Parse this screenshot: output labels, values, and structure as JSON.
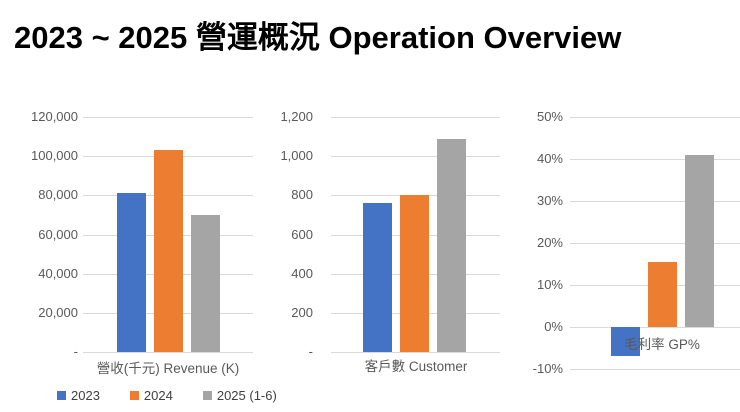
{
  "title": "2023 ~ 2025 營運概況 Operation Overview",
  "colors": {
    "series": [
      "#4472C4",
      "#ED7D31",
      "#A5A5A5"
    ],
    "grid": "#D9D9D9",
    "axis_text": "#595959",
    "legend_text": "#404040",
    "title_text": "#000000",
    "background": "#FFFFFF"
  },
  "legend": {
    "items": [
      {
        "label": "2023",
        "color": "#4472C4"
      },
      {
        "label": "2024",
        "color": "#ED7D31"
      },
      {
        "label": "2025 (1-6)",
        "color": "#A5A5A5"
      }
    ]
  },
  "chart_data": [
    {
      "type": "bar",
      "key": "revenue",
      "title": "營收(千元) Revenue (K)",
      "xlabel": "營收(千元) Revenue (K)",
      "categories": [
        "2023",
        "2024",
        "2025 (1-6)"
      ],
      "values": [
        81000,
        103000,
        70000
      ],
      "ylim": [
        0,
        120000
      ],
      "ytick_step": 20000,
      "ytick_labels": [
        "-",
        "20,000",
        "40,000",
        "60,000",
        "80,000",
        "100,000",
        "120,000"
      ],
      "grid": true,
      "xlabel_position": "below",
      "legend_position": "shared-bottom-left"
    },
    {
      "type": "bar",
      "key": "customer",
      "title": "客戶數 Customer",
      "xlabel": "客戶數 Customer",
      "categories": [
        "2023",
        "2024",
        "2025 (1-6)"
      ],
      "values": [
        760,
        800,
        1090
      ],
      "ylim": [
        0,
        1200
      ],
      "ytick_step": 200,
      "ytick_labels": [
        "-",
        "200",
        "400",
        "600",
        "800",
        "1,000",
        "1,200"
      ],
      "grid": true,
      "xlabel_position": "below",
      "legend_position": "shared-bottom-left"
    },
    {
      "type": "bar",
      "key": "gross-profit",
      "title": "毛利率 GP%",
      "xlabel": "毛利率 GP%",
      "unit": "%",
      "categories": [
        "2023",
        "2024",
        "2025 (1-6)"
      ],
      "values": [
        -7,
        15.5,
        41
      ],
      "ylim": [
        -10,
        50
      ],
      "ytick_step": 10,
      "ytick_labels": [
        "-10%",
        "0%",
        "10%",
        "20%",
        "30%",
        "40%",
        "50%"
      ],
      "grid": true,
      "xlabel_position": "at-zero",
      "legend_position": "shared-bottom-left"
    }
  ]
}
